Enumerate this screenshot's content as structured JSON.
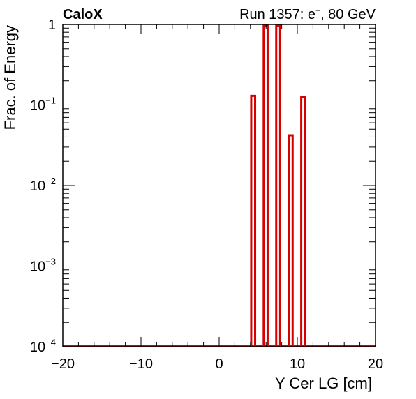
{
  "header": {
    "experiment": "CaloX",
    "run_info": "Run 1357: e",
    "run_superscript": "+",
    "run_suffix": ", 80 GeV"
  },
  "chart_data": {
    "type": "histogram",
    "title": "",
    "xlabel": "Y Cer LG [cm]",
    "ylabel": "Frac. of Energy",
    "xlim": [
      -20,
      20
    ],
    "ylim": [
      0.0001,
      1
    ],
    "yscale": "log",
    "grid": false,
    "legend": "none",
    "line_color": "#d60000",
    "x_ticks": [
      {
        "value": -20,
        "label": "−20"
      },
      {
        "value": -10,
        "label": "−10"
      },
      {
        "value": 0,
        "label": "0"
      },
      {
        "value": 10,
        "label": "10"
      },
      {
        "value": 20,
        "label": "20"
      }
    ],
    "y_ticks": [
      {
        "value": 1,
        "base": "1",
        "exp": ""
      },
      {
        "value": 0.1,
        "base": "10",
        "exp": "−1"
      },
      {
        "value": 0.01,
        "base": "10",
        "exp": "−2"
      },
      {
        "value": 0.001,
        "base": "10",
        "exp": "−3"
      },
      {
        "value": 0.0001,
        "base": "10",
        "exp": "−4"
      }
    ],
    "bars": [
      {
        "x0": 4.1,
        "x1": 4.6,
        "y": 0.13
      },
      {
        "x0": 5.7,
        "x1": 6.2,
        "y": 1.0
      },
      {
        "x0": 7.3,
        "x1": 7.8,
        "y": 1.0
      },
      {
        "x0": 8.9,
        "x1": 9.4,
        "y": 0.042
      },
      {
        "x0": 10.5,
        "x1": 11.0,
        "y": 0.125
      }
    ]
  }
}
